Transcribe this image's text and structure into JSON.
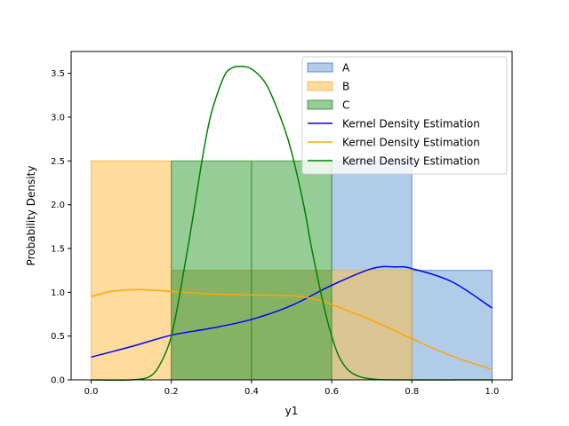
{
  "chart_data": {
    "type": "bar",
    "title": "",
    "xlabel": "y1",
    "ylabel": "Probability Density",
    "xlim": [
      -0.05,
      1.05
    ],
    "ylim": [
      0,
      3.75
    ],
    "x_ticks": [
      0.0,
      0.2,
      0.4,
      0.6,
      0.8,
      1.0
    ],
    "x_tick_labels": [
      "0.0",
      "0.2",
      "0.4",
      "0.6",
      "0.8",
      "1.0"
    ],
    "y_ticks": [
      0.0,
      0.5,
      1.0,
      1.5,
      2.0,
      2.5,
      3.0,
      3.5
    ],
    "y_tick_labels": [
      "0.0",
      "0.5",
      "1.0",
      "1.5",
      "2.0",
      "2.5",
      "3.0",
      "3.5"
    ],
    "grid": false,
    "legend_position": "top-right",
    "histograms": [
      {
        "name": "A",
        "color": "#6fa3d6",
        "edge": "#4a74e0",
        "bins": [
          [
            0.2,
            0.4,
            1.25
          ],
          [
            0.4,
            0.6,
            1.25
          ],
          [
            0.6,
            0.8,
            2.5
          ],
          [
            0.8,
            1.0,
            1.25
          ]
        ]
      },
      {
        "name": "B",
        "color": "#ffc04d",
        "edge": "#f0b040",
        "bins": [
          [
            0.0,
            0.2,
            2.5
          ],
          [
            0.2,
            0.4,
            1.25
          ],
          [
            0.4,
            0.6,
            1.25
          ],
          [
            0.6,
            0.8,
            1.25
          ]
        ]
      },
      {
        "name": "C",
        "color": "#3fa33f",
        "edge": "#2e8b2e",
        "bins": [
          [
            0.2,
            0.4,
            2.5
          ],
          [
            0.4,
            0.6,
            2.5
          ]
        ]
      }
    ],
    "kde": [
      {
        "name": "Kernel Density Estimation",
        "color": "#0000ff",
        "x": [
          0.0,
          0.1,
          0.2,
          0.3,
          0.4,
          0.5,
          0.6,
          0.7,
          0.76,
          0.8,
          0.9,
          1.0
        ],
        "y": [
          0.26,
          0.38,
          0.51,
          0.59,
          0.69,
          0.85,
          1.08,
          1.27,
          1.29,
          1.27,
          1.12,
          0.82
        ]
      },
      {
        "name": "Kernel Density Estimation",
        "color": "#ffa500",
        "x": [
          0.0,
          0.05,
          0.12,
          0.2,
          0.3,
          0.4,
          0.5,
          0.55,
          0.6,
          0.7,
          0.8,
          0.9,
          1.0
        ],
        "y": [
          0.95,
          1.01,
          1.03,
          1.01,
          0.98,
          0.97,
          0.96,
          0.93,
          0.86,
          0.68,
          0.47,
          0.27,
          0.12
        ]
      },
      {
        "name": "Kernel Density Estimation",
        "color": "#008000",
        "x": [
          0.0,
          0.1,
          0.15,
          0.18,
          0.2,
          0.22,
          0.25,
          0.28,
          0.3,
          0.33,
          0.35,
          0.375,
          0.4,
          0.43,
          0.45,
          0.48,
          0.5,
          0.53,
          0.55,
          0.58,
          0.6,
          0.62,
          0.65,
          0.7,
          0.8,
          1.0
        ],
        "y": [
          0.0,
          0.0,
          0.05,
          0.25,
          0.5,
          0.95,
          1.75,
          2.6,
          3.05,
          3.45,
          3.56,
          3.58,
          3.55,
          3.42,
          3.25,
          2.9,
          2.6,
          2.0,
          1.5,
          0.85,
          0.5,
          0.25,
          0.08,
          0.01,
          0.0,
          0.0
        ]
      }
    ]
  }
}
